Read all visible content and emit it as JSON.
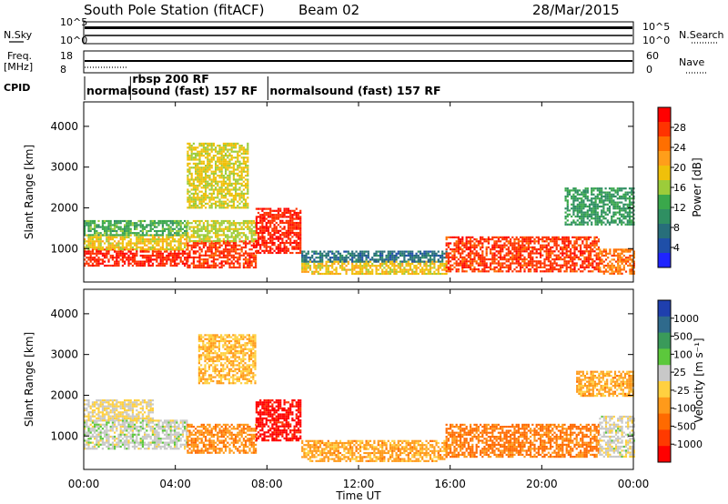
{
  "header": {
    "station": "South Pole Station (fitACF)",
    "beam": "Beam 02",
    "date": "28/Mar/2015"
  },
  "side_labels": {
    "nsky": "N.Sky",
    "nsearch": "N.Search",
    "freq_line1": "Freq.",
    "freq_line2": "[MHz]",
    "nave": "Nave",
    "cpid": "CPID"
  },
  "noise_panel": {
    "left_ticks": [
      "10^5",
      "10^0"
    ],
    "right_ticks": [
      "10^5",
      "10^0"
    ]
  },
  "freq_panel": {
    "left_ticks": [
      "18",
      "8"
    ],
    "right_ticks": [
      "60",
      "0"
    ]
  },
  "cpid_modes": [
    {
      "label": "normalsound (fast) 157 RF",
      "start_hour": 0.0,
      "row": 2
    },
    {
      "label": "rbsp 200 RF",
      "start_hour": 2.0,
      "row": 1
    },
    {
      "label": "normalsound (fast) 157 RF",
      "start_hour": 8.0,
      "row": 2
    }
  ],
  "axes": {
    "xlabel": "Time UT",
    "xticks": [
      "00:00",
      "04:00",
      "08:00",
      "12:00",
      "16:00",
      "20:00",
      "00:00"
    ],
    "xtick_hours": [
      0,
      4,
      8,
      12,
      16,
      20,
      24
    ],
    "ylabel": "Slant Range [km]",
    "yticks": [
      "1000",
      "2000",
      "3000",
      "4000"
    ],
    "ytick_values": [
      1000,
      2000,
      3000,
      4000
    ]
  },
  "colorbars": {
    "power": {
      "label": "Power [dB]",
      "ticks": [
        "28",
        "24",
        "20",
        "16",
        "12",
        "8",
        "4"
      ],
      "colors": [
        "#ff0000",
        "#ff3300",
        "#ff6f00",
        "#ff9e1a",
        "#f0c00a",
        "#9ccc3a",
        "#3aa84b",
        "#2f8f62",
        "#276e7a",
        "#1f4fa8",
        "#1f24ff"
      ]
    },
    "velocity": {
      "label": "Velocity [m s⁻¹]",
      "ticks": [
        "1000",
        "500",
        "100",
        "25",
        "-25",
        "-100",
        "-500",
        "-1000"
      ],
      "colors": [
        "#1f3fae",
        "#2f6a8c",
        "#3a9a5a",
        "#5cc83c",
        "#c8c8c8",
        "#ffd040",
        "#ff9a1a",
        "#ff6a00",
        "#ff3a00",
        "#ff0000"
      ]
    }
  },
  "chart_data": [
    {
      "type": "heatmap",
      "name": "Power",
      "x_range_hours": [
        0,
        24
      ],
      "y_range_km": [
        180,
        4600
      ],
      "colorbar_label": "Power [dB]",
      "value_range": [
        0,
        30
      ],
      "regions": [
        {
          "t0": 0.0,
          "t1": 4.5,
          "r0": 600,
          "r1": 1000,
          "value": 28
        },
        {
          "t0": 0.0,
          "t1": 4.5,
          "r0": 1000,
          "r1": 1350,
          "value": 18
        },
        {
          "t0": 0.0,
          "t1": 4.5,
          "r0": 1350,
          "r1": 1700,
          "value": 12
        },
        {
          "t0": 4.5,
          "t1": 7.5,
          "r0": 550,
          "r1": 1200,
          "value": 27
        },
        {
          "t0": 4.5,
          "t1": 7.5,
          "r0": 1200,
          "r1": 1700,
          "value": 16
        },
        {
          "t0": 7.5,
          "t1": 9.5,
          "r0": 900,
          "r1": 2000,
          "value": 28
        },
        {
          "t0": 9.5,
          "t1": 15.8,
          "r0": 400,
          "r1": 700,
          "value": 18
        },
        {
          "t0": 9.5,
          "t1": 15.8,
          "r0": 700,
          "r1": 950,
          "value": 6
        },
        {
          "t0": 15.8,
          "t1": 22.5,
          "r0": 450,
          "r1": 1300,
          "value": 27
        },
        {
          "t0": 22.5,
          "t1": 24.0,
          "r0": 400,
          "r1": 1000,
          "value": 24
        },
        {
          "t0": 21.0,
          "t1": 24.0,
          "r0": 1600,
          "r1": 2500,
          "value": 10
        },
        {
          "t0": 4.5,
          "t1": 7.2,
          "r0": 2000,
          "r1": 3600,
          "value": 17
        }
      ]
    },
    {
      "type": "heatmap",
      "name": "Velocity",
      "x_range_hours": [
        0,
        24
      ],
      "y_range_km": [
        180,
        4600
      ],
      "colorbar_label": "Velocity [m s⁻¹]",
      "value_range": [
        -1000,
        1000
      ],
      "regions": [
        {
          "t0": 0.0,
          "t1": 4.5,
          "r0": 700,
          "r1": 1400,
          "value": 120
        },
        {
          "t0": 0.0,
          "t1": 3.0,
          "r0": 1400,
          "r1": 1900,
          "value": 0
        },
        {
          "t0": 4.5,
          "t1": 7.5,
          "r0": 600,
          "r1": 1300,
          "value": -400
        },
        {
          "t0": 7.5,
          "t1": 9.5,
          "r0": 900,
          "r1": 1900,
          "value": -1000
        },
        {
          "t0": 9.5,
          "t1": 15.8,
          "r0": 400,
          "r1": 900,
          "value": -300
        },
        {
          "t0": 15.8,
          "t1": 22.5,
          "r0": 500,
          "r1": 1300,
          "value": -500
        },
        {
          "t0": 22.5,
          "t1": 24.0,
          "r0": 500,
          "r1": 1500,
          "value": 80
        },
        {
          "t0": 5.0,
          "t1": 7.5,
          "r0": 2300,
          "r1": 3500,
          "value": -200
        },
        {
          "t0": 21.5,
          "t1": 24.0,
          "r0": 2000,
          "r1": 2600,
          "value": -300
        }
      ]
    }
  ]
}
